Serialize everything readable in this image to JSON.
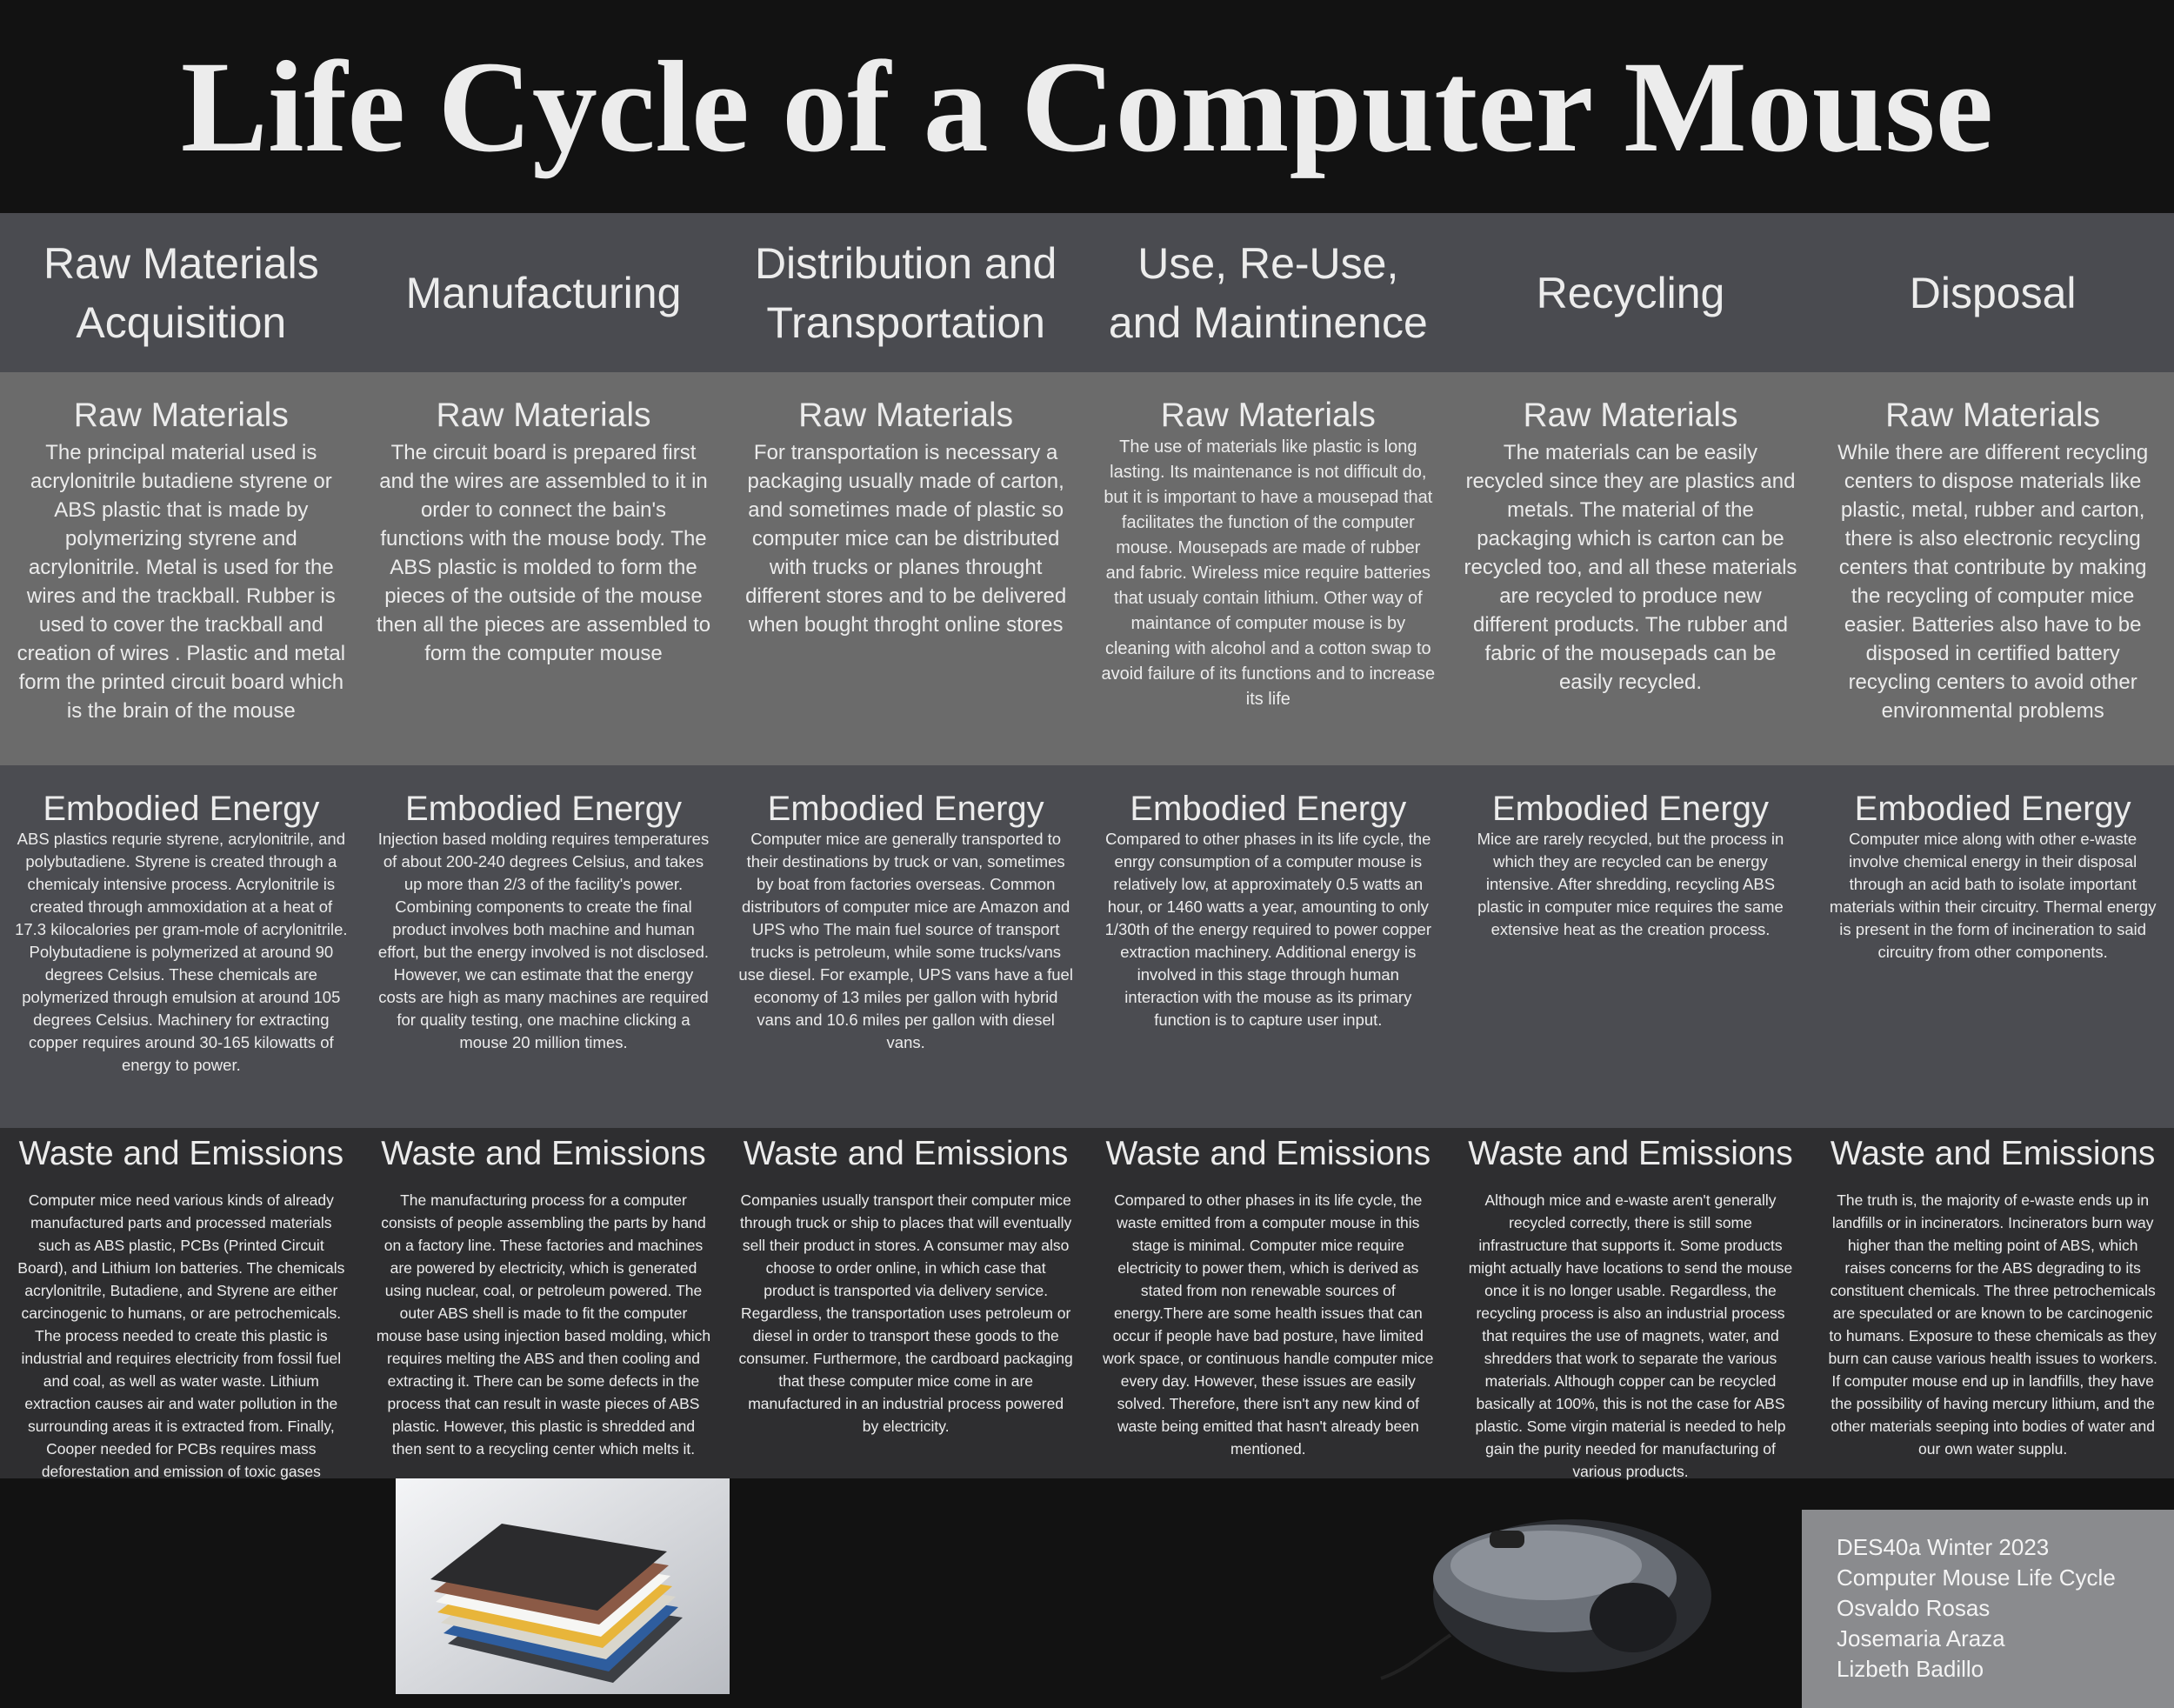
{
  "title": "Life Cycle of a Computer Mouse",
  "phases": [
    "Raw Materials Acquisition",
    "Manufacturing",
    "Distribution and Transportation",
    "Use, Re-Use, and Maintinence",
    "Recycling",
    "Disposal"
  ],
  "sections": [
    {
      "heading": "Raw Materials",
      "texts": [
        "The principal material used is acrylonitrile butadiene styrene or ABS plastic that is made by polymerizing styrene and acrylonitrile. Metal  is used for the wires and the trackball. Rubber is used to cover the trackball and creation of wires . Plastic and metal form the printed circuit board which is the brain of the mouse",
        "The circuit board is prepared first and the wires are assembled to it in order to connect the bain's functions with the mouse body. The ABS plastic  is molded  to form the pieces of the outside of the mouse then all the pieces are assembled to form the computer mouse",
        "For transportation is necessary a packaging usually made of carton, and sometimes made of plastic so computer mice can be distributed with trucks or planes throught different stores and to be delivered when bought throght online stores",
        "The use of materials like plastic is long lasting. Its maintenance is not difficult do, but it  is important to have a mousepad that facilitates the function of  the computer mouse. Mousepads are made of rubber and fabric. Wireless mice require batteries that usualy contain lithium. Other way of maintance of computer mouse is by cleaning with alcohol and a cotton swap to avoid failure of its functions and to increase its life",
        "The materials can be easily recycled since they are plastics and metals. The material of the packaging which is carton can be recycled too, and all these materials are recycled to produce new different products. The rubber and fabric of the mousepads can be easily recycled.",
        "While there are different recycling centers to dispose materials like plastic, metal, rubber and carton, there is also electronic recycling centers that contribute by making the recycling of computer mice easier. Batteries also have to be disposed in certified battery recycling centers to avoid  other environmental problems"
      ]
    },
    {
      "heading": "Embodied Energy",
      "texts": [
        "ABS plastics requrie styrene, acrylonitrile, and polybutadiene. Styrene is created through a chemicaly intensive process. Acrylonitrile is created through ammoxidation at a heat of 17.3 kilocalories per gram-mole of acrylonitrile. Polybutadiene is polymerized at around 90 degrees Celsius. These chemicals are polymerized through emulsion at around 105 degrees Celsius. Machinery for extracting copper requires around 30-165 kilowatts of energy to power.",
        "Injection based molding requires temperatures of about 200-240 degrees Celsius, and takes up more than 2/3 of the facility's power. Combining components to create the final product involves both machine and human effort, but the energy involved is not disclosed. However, we can estimate that the energy costs are high as many machines are required for quality testing, one machine clicking a mouse 20 million times.",
        "Computer mice are generally transported to their destinations by truck or van, sometimes by boat from factories overseas. Common distributors of computer mice are Amazon and UPS who The main fuel source of transport trucks is petroleum, while some trucks/vans use diesel. For example, UPS vans have a fuel economy of 13 miles per gallon with hybrid vans and 10.6 miles per gallon with diesel vans.",
        "Compared to other phases in its life cycle, the enrgy consumption of a computer mouse is relatively low, at approximately 0.5 watts an hour, or 1460 watts a year, amounting to only 1/30th of the energy required to power copper extraction machinery. Additional energy is involved in this stage through human interaction with the mouse as its primary function is to capture user input.",
        "Mice are rarely recycled, but the process in which they are recycled can be energy intensive. After shredding, recycling ABS plastic in computer mice requires the same extensive heat as the creation process.",
        "Computer mice along with other e-waste involve chemical energy in their disposal through an acid bath to isolate important materials within their circuitry. Thermal energy is present in the form of incineration to said circuitry from other components."
      ]
    },
    {
      "heading": "Waste and Emissions",
      "texts": [
        "Computer mice need various kinds of already manufactured parts and processed materials such as ABS plastic, PCBs (Printed Circuit Board), and Lithium Ion batteries. The chemicals acrylonitrile, Butadiene, and Styrene are either carcinogenic to humans, or are petrochemicals. The process needed to create this plastic is industrial and requires electricity from fossil fuel and coal, as well as water waste. Lithium extraction causes air and water pollution in the surrounding areas it is extracted from. Finally, Cooper needed for PCBs requires mass deforestation and emission of toxic gases",
        "The manufacturing process for a computer consists of people assembling the parts by hand on a factory line. These factories and machines are powered by electricity, which is generated using nuclear, coal, or petroleum powered. The outer ABS shell is made to fit the computer mouse base using injection based molding, which requires melting the ABS and then cooling and extracting it. There can be some defects in the process that can result in waste pieces of ABS plastic. However, this plastic is shredded and then sent to a recycling center which melts it.",
        "Companies usually transport their computer mice through truck or ship to places that will eventually sell their product in stores. A consumer may also choose to order online, in which case that product is transported via delivery service. Regardless, the transportation uses petroleum or diesel in order to transport these goods to the consumer. Furthermore, the cardboard packaging that these computer mice come in are manufactured in an industrial process powered by electricity.",
        "Compared to other phases in its life cycle, the waste emitted from a computer mouse in this stage is minimal. Computer mice require electricity to power them, which is derived as stated from non renewable sources of energy.There are some health issues that can occur if people have bad posture, have limited work space, or continuous handle computer mice every day. However, these issues are easily solved. Therefore, there isn't any new kind of waste being emitted that hasn't already been mentioned.",
        "Although mice and e-waste aren't generally recycled correctly, there is still some infrastructure that supports it. Some products might actually have locations to send the mouse once it is no longer usable. Regardless, the recycling process is also an industrial process that requires the use of magnets, water, and shredders that work to separate the various materials. Although copper can be recycled basically at 100%, this is not the case for ABS plastic. Some virgin material is needed to help gain the purity needed for manufacturing of various products.",
        "The truth is, the majority of e-waste ends up in landfills or in incinerators. Incinerators burn way higher than the melting point of ABS, which raises concerns for the ABS degrading to its constituent chemicals. The three petrochemicals are speculated or are known to be carcinogenic to humans. Exposure to these chemicals as they burn can cause various health issues to workers. If computer mouse end up in landfills, they have the possibility of having mercury lithium, and the other materials seeping into bodies of water and our own water supplu."
      ]
    }
  ],
  "credits": [
    "DES40a Winter 2023",
    "Computer Mouse Life Cycle",
    "Osvaldo Rosas",
    "Josemaria Araza",
    "Lizbeth Badillo"
  ]
}
